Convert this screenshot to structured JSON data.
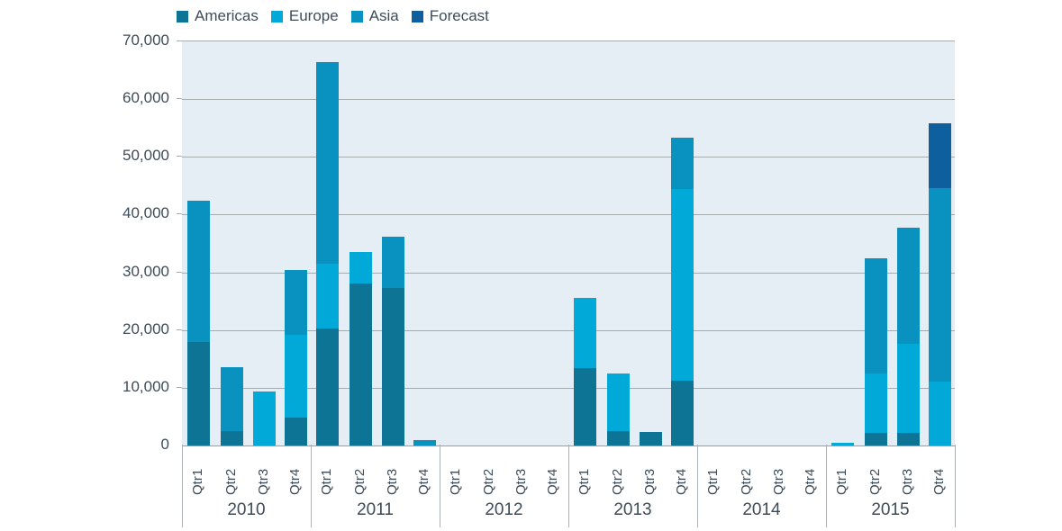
{
  "legend": {
    "items": [
      {
        "label": "Americas",
        "color": "#0e7496"
      },
      {
        "label": "Europe",
        "color": "#00a9d8"
      },
      {
        "label": "Asia",
        "color": "#0991bf"
      },
      {
        "label": "Forecast",
        "color": "#0e5f9d"
      }
    ]
  },
  "colors": {
    "plot_background": "#e4eef4",
    "gridline": "#a6abae",
    "axis_text": "#3e4c59"
  },
  "chart_data": {
    "type": "bar",
    "stacked": true,
    "title": "",
    "xlabel": "",
    "ylabel": "",
    "ylim": [
      0,
      70000
    ],
    "ytick_interval": 10000,
    "ytick_labels": [
      "70,000",
      "60,000",
      "50,000",
      "40,000",
      "30,000",
      "20,000",
      "10,000",
      "0"
    ],
    "grid": true,
    "legend_position": "top",
    "years": [
      "2010",
      "2011",
      "2012",
      "2013",
      "2014",
      "2015"
    ],
    "quarters": [
      "Qtr1",
      "Qtr2",
      "Qtr3",
      "Qtr4"
    ],
    "series": [
      {
        "name": "Americas",
        "color": "#0e7496",
        "values": [
          [
            18000,
            2500,
            0,
            4800
          ],
          [
            20300,
            28000,
            27300,
            0
          ],
          [
            0,
            0,
            0,
            0
          ],
          [
            13400,
            2500,
            2300,
            11300
          ],
          [
            0,
            0,
            0,
            0
          ],
          [
            0,
            2200,
            2200,
            0
          ]
        ]
      },
      {
        "name": "Europe",
        "color": "#00a9d8",
        "values": [
          [
            0,
            0,
            9300,
            14300
          ],
          [
            11300,
            5400,
            0,
            0
          ],
          [
            0,
            0,
            0,
            0
          ],
          [
            12100,
            9900,
            0,
            33200
          ],
          [
            0,
            0,
            0,
            0
          ],
          [
            400,
            10300,
            15500,
            11000
          ]
        ]
      },
      {
        "name": "Asia",
        "color": "#0991bf",
        "values": [
          [
            24500,
            11000,
            0,
            11200
          ],
          [
            34900,
            0,
            8900,
            900
          ],
          [
            0,
            0,
            0,
            0
          ],
          [
            0,
            0,
            0,
            8900
          ],
          [
            0,
            0,
            0,
            0
          ],
          [
            0,
            20000,
            20100,
            33500
          ]
        ]
      },
      {
        "name": "Forecast",
        "color": "#0e5f9d",
        "values": [
          [
            0,
            0,
            0,
            0
          ],
          [
            0,
            0,
            0,
            0
          ],
          [
            0,
            0,
            0,
            0
          ],
          [
            0,
            0,
            0,
            0
          ],
          [
            0,
            0,
            0,
            0
          ],
          [
            0,
            0,
            0,
            11200
          ]
        ]
      }
    ]
  }
}
